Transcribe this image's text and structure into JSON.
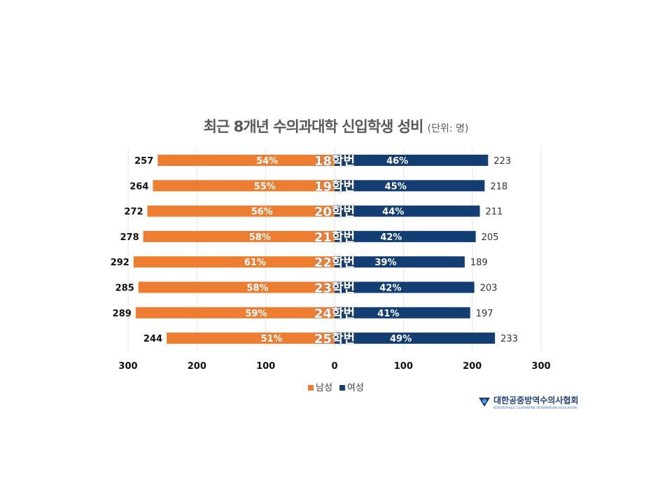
{
  "chart_data": {
    "type": "bar",
    "orientation": "horizontal-diverging",
    "title": "최근 8개년 수의과대학 신입학생 성비",
    "unit": "(단위: 명)",
    "categories": [
      "18학번",
      "19학번",
      "20학번",
      "21학번",
      "22학번",
      "23학번",
      "24학번",
      "25학번"
    ],
    "series": [
      {
        "name": "남성",
        "color": "#ED7D31",
        "values": [
          257,
          264,
          272,
          278,
          292,
          285,
          289,
          244
        ],
        "percent_labels": [
          "54%",
          "55%",
          "56%",
          "58%",
          "61%",
          "58%",
          "59%",
          "51%"
        ]
      },
      {
        "name": "여성",
        "color": "#123E73",
        "values": [
          223,
          218,
          211,
          205,
          189,
          203,
          197,
          233
        ],
        "percent_labels": [
          "46%",
          "45%",
          "44%",
          "42%",
          "39%",
          "42%",
          "41%",
          "49%"
        ]
      }
    ],
    "xlim": [
      -300,
      300
    ],
    "xticks": [
      "300",
      "200",
      "100",
      "0",
      "100",
      "200",
      "300"
    ],
    "grid": true,
    "legend_position": "bottom"
  },
  "logo": {
    "name": "대한공중방역수의사협회",
    "sub": "KOREAN PUBLIC QUARANTINE VETERINARIAN ASSOCIATION"
  }
}
